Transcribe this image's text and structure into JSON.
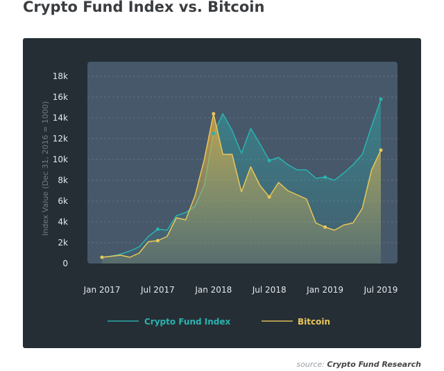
{
  "title": "Crypto Fund Index vs. Bitcoin",
  "source_label": "source:",
  "source_name": "Crypto Fund Research",
  "colors": {
    "fund": "#2bb3b0",
    "bitcoin": "#e8c75a",
    "card": "#252e35",
    "plot": "#46586a"
  },
  "chart_data": {
    "type": "area",
    "title": "Crypto Fund Index vs. Bitcoin",
    "ylabel": "Index Value (Dec 31, 2016 = 1000)",
    "xlabel": "",
    "ylim": [
      0,
      18000
    ],
    "yticks": [
      0,
      2000,
      4000,
      6000,
      8000,
      10000,
      12000,
      14000,
      16000,
      18000
    ],
    "ytick_labels": [
      "0",
      "2k",
      "4k",
      "6k",
      "8k",
      "10k",
      "12k",
      "14k",
      "16k",
      "18k"
    ],
    "xtick_labels": [
      "Jan 2017",
      "Jul 2017",
      "Jan 2018",
      "Jul 2018",
      "Jan 2019",
      "Jul 2019"
    ],
    "xtick_month_index": [
      0,
      6,
      12,
      18,
      24,
      30
    ],
    "grid": true,
    "legend": "bottom",
    "x": [
      "2017-01",
      "2017-02",
      "2017-03",
      "2017-04",
      "2017-05",
      "2017-06",
      "2017-07",
      "2017-08",
      "2017-09",
      "2017-10",
      "2017-11",
      "2017-12",
      "2018-01",
      "2018-02",
      "2018-03",
      "2018-04",
      "2018-05",
      "2018-06",
      "2018-07",
      "2018-08",
      "2018-09",
      "2018-10",
      "2018-11",
      "2018-12",
      "2019-01",
      "2019-02",
      "2019-03",
      "2019-04",
      "2019-05",
      "2019-06",
      "2019-07"
    ],
    "series": [
      {
        "name": "Crypto Fund Index",
        "values": [
          600,
          700,
          900,
          1200,
          1600,
          2600,
          3300,
          3200,
          4600,
          4900,
          5500,
          7500,
          12500,
          14400,
          12800,
          10600,
          13000,
          11500,
          9900,
          10200,
          9500,
          9000,
          9000,
          8200,
          8300,
          8000,
          8700,
          9500,
          10500,
          13200,
          15800
        ]
      },
      {
        "name": "Bitcoin",
        "values": [
          600,
          700,
          800,
          600,
          1000,
          2100,
          2200,
          2600,
          4400,
          4200,
          6500,
          10000,
          14400,
          10500,
          10500,
          6900,
          9300,
          7500,
          6400,
          7800,
          7000,
          6600,
          6200,
          3900,
          3500,
          3200,
          3700,
          3900,
          5300,
          9000,
          10900
        ]
      }
    ],
    "highlight_month_index": [
      0,
      6,
      12,
      18,
      24,
      30
    ]
  }
}
